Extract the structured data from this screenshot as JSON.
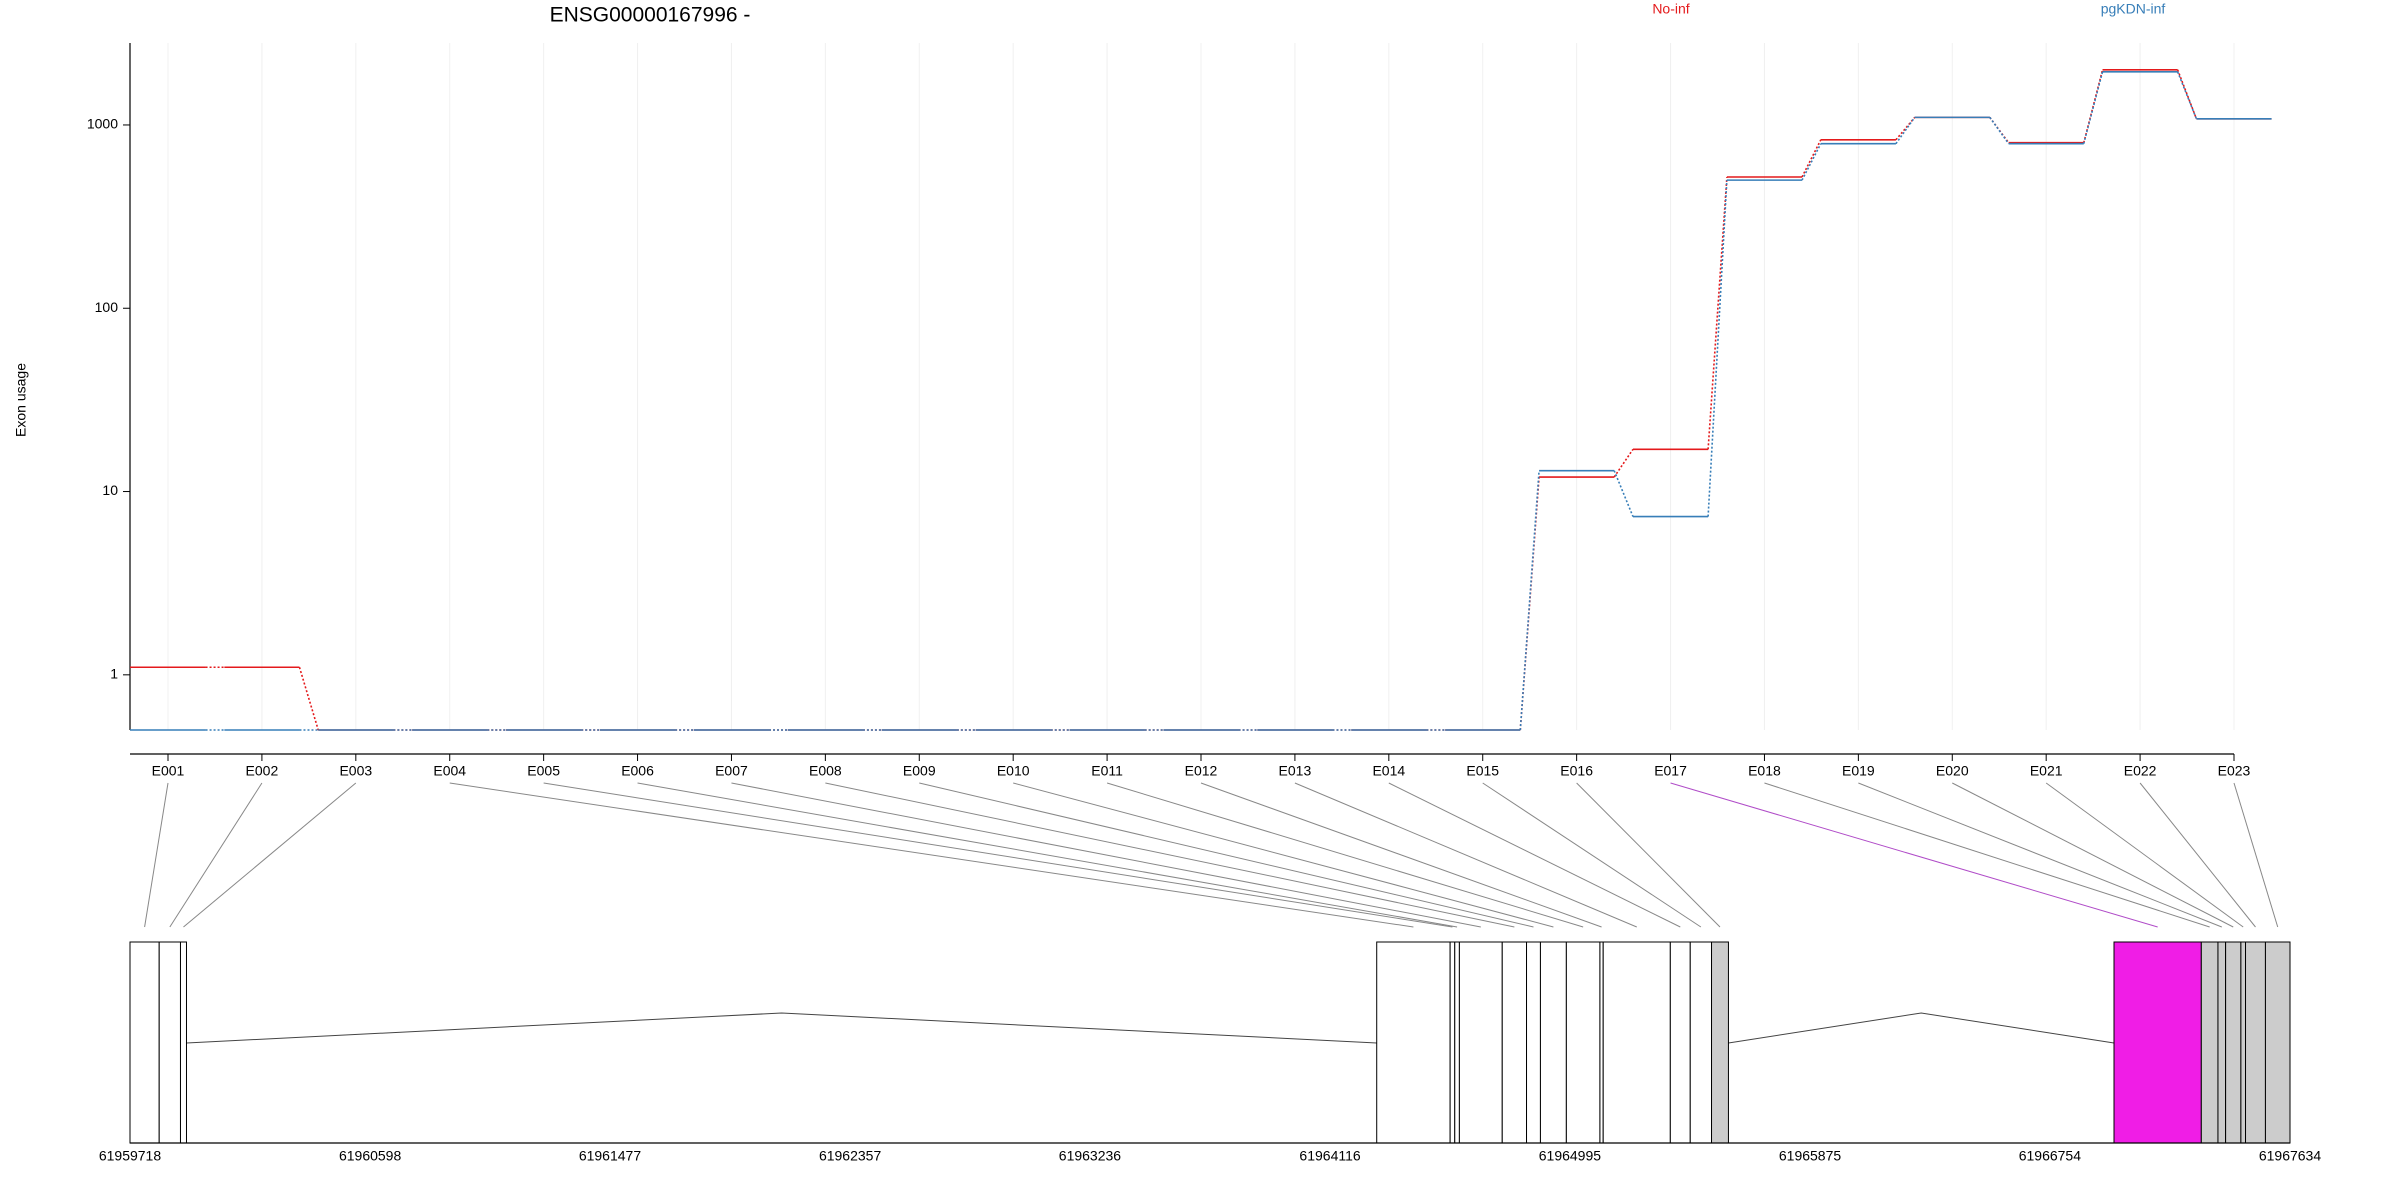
{
  "chart_data": [
    {
      "type": "line",
      "title": "ENSG00000167996 -",
      "y_label": "Exon usage",
      "log_scale": true,
      "grid": true,
      "categories": [
        "E001",
        "E002",
        "E003",
        "E004",
        "E005",
        "E006",
        "E007",
        "E008",
        "E009",
        "E010",
        "E011",
        "E012",
        "E013",
        "E014",
        "E015",
        "E016",
        "E017",
        "E018",
        "E019",
        "E020",
        "E021",
        "E022",
        "E023"
      ],
      "series": [
        {
          "name": "No-inf",
          "color": "#e41a1c",
          "values": [
            1.1,
            1.1,
            0.5,
            0.5,
            0.5,
            0.5,
            0.5,
            0.5,
            0.5,
            0.5,
            0.5,
            0.5,
            0.5,
            0.5,
            0.5,
            12,
            17,
            520,
            830,
            1100,
            800,
            2000,
            1080
          ]
        },
        {
          "name": "pgKDN-inf",
          "color": "#377eb8",
          "values": [
            0.5,
            0.5,
            0.5,
            0.5,
            0.5,
            0.5,
            0.5,
            0.5,
            0.5,
            0.5,
            0.5,
            0.5,
            0.5,
            0.5,
            0.5,
            13,
            7.3,
            500,
            790,
            1100,
            790,
            1950,
            1080
          ]
        }
      ],
      "ylim": [
        0.5,
        2800
      ],
      "yticks": [
        1,
        10,
        100,
        1000
      ]
    },
    {
      "type": "gene_model",
      "exons": {
        "start": [
          61959718,
          61959825,
          61959903,
          61964287,
          61964556,
          61964573,
          61964590,
          61964747,
          61964836,
          61964887,
          61964982,
          61965105,
          61965117,
          61965363,
          61965436,
          61965514,
          61966989,
          61967309,
          61967370,
          61967398,
          61967454,
          61967471,
          61967544
        ],
        "end": [
          61959825,
          61959903,
          61959925,
          61964556,
          61964573,
          61964590,
          61964747,
          61964836,
          61964887,
          61964982,
          61965105,
          61965117,
          61965363,
          61965436,
          61965514,
          61965576,
          61967309,
          61967370,
          61967398,
          61967454,
          61967471,
          61967544,
          61967634
        ],
        "colors": [
          "#ffffff",
          "#ffffff",
          "#ffffff",
          "#ffffff",
          "#ffffff",
          "#ffffff",
          "#ffffff",
          "#ffffff",
          "#ffffff",
          "#ffffff",
          "#ffffff",
          "#ffffff",
          "#ffffff",
          "#ffffff",
          "#ffffff",
          "#cccccc",
          "#f01de6",
          "#cccccc",
          "#cccccc",
          "#cccccc",
          "#cccccc",
          "#cccccc",
          "#cccccc"
        ],
        "connector_colors": [
          "#888888",
          "#888888",
          "#888888",
          "#888888",
          "#888888",
          "#888888",
          "#888888",
          "#888888",
          "#888888",
          "#888888",
          "#888888",
          "#888888",
          "#888888",
          "#888888",
          "#888888",
          "#888888",
          "#b04cc8",
          "#888888",
          "#888888",
          "#888888",
          "#888888",
          "#888888",
          "#888888"
        ]
      },
      "xlim": [
        61959718,
        61967634
      ],
      "xticks": [
        61959718,
        61960598,
        61961477,
        61962357,
        61963236,
        61964116,
        61964995,
        61965875,
        61966754,
        61967634
      ]
    }
  ]
}
